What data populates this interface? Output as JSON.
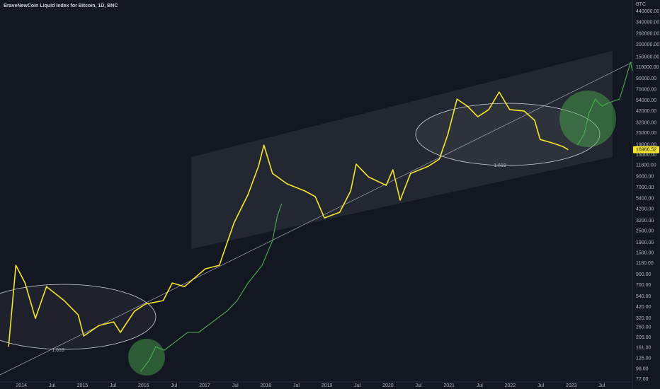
{
  "chart_data": {
    "type": "line",
    "title": "BraveNewCoin Liquid Index for Bitcoin, 1D, BNC",
    "y_axis_label": "BTC",
    "log_scale": true,
    "grid": false,
    "annotations": [
      "1.618",
      "1.618"
    ],
    "xlim": [
      2013.65,
      2024.0
    ],
    "xticks": [
      {
        "value": 2014,
        "label": "2014"
      },
      {
        "value": 2014.5,
        "label": "Jul"
      },
      {
        "value": 2015,
        "label": "2015"
      },
      {
        "value": 2015.5,
        "label": "Jul"
      },
      {
        "value": 2016,
        "label": "2016"
      },
      {
        "value": 2016.5,
        "label": "Jul"
      },
      {
        "value": 2017,
        "label": "2017"
      },
      {
        "value": 2017.5,
        "label": "Jul"
      },
      {
        "value": 2018,
        "label": "2018"
      },
      {
        "value": 2018.5,
        "label": "Jul"
      },
      {
        "value": 2019,
        "label": "2019"
      },
      {
        "value": 2019.5,
        "label": "Jul"
      },
      {
        "value": 2020,
        "label": "2020"
      },
      {
        "value": 2020.5,
        "label": "Jul"
      },
      {
        "value": 2021,
        "label": "2021"
      },
      {
        "value": 2021.5,
        "label": "Jul"
      },
      {
        "value": 2022,
        "label": "2022"
      },
      {
        "value": 2022.5,
        "label": "Jul"
      },
      {
        "value": 2023,
        "label": "2023"
      },
      {
        "value": 2023.5,
        "label": "Jul"
      }
    ],
    "ylim": [
      74.5,
      574000
    ],
    "yticks": [
      {
        "value": 440000,
        "label": "440000.00"
      },
      {
        "value": 340000,
        "label": "340000.00"
      },
      {
        "value": 260000,
        "label": "260000.00"
      },
      {
        "value": 200000,
        "label": "200000.00"
      },
      {
        "value": 150000,
        "label": "150000.00"
      },
      {
        "value": 118000,
        "label": "118000.00"
      },
      {
        "value": 90000,
        "label": "90000.00"
      },
      {
        "value": 70000,
        "label": "70000.00"
      },
      {
        "value": 54000,
        "label": "54000.00"
      },
      {
        "value": 42000,
        "label": "42000.00"
      },
      {
        "value": 32000,
        "label": "32000.00"
      },
      {
        "value": 25000,
        "label": "25000.00"
      },
      {
        "value": 19000,
        "label": "19000.00"
      },
      {
        "value": 15000,
        "label": "15000.00"
      },
      {
        "value": 11800,
        "label": "11800.00"
      },
      {
        "value": 9000,
        "label": "9000.00"
      },
      {
        "value": 7000,
        "label": "7000.00"
      },
      {
        "value": 5400,
        "label": "5400.00"
      },
      {
        "value": 4200,
        "label": "4200.00"
      },
      {
        "value": 3200,
        "label": "3200.00"
      },
      {
        "value": 2500,
        "label": "2500.00"
      },
      {
        "value": 1900,
        "label": "1900.00"
      },
      {
        "value": 1500,
        "label": "1500.00"
      },
      {
        "value": 1180,
        "label": "1180.00"
      },
      {
        "value": 900,
        "label": "900.00"
      },
      {
        "value": 700,
        "label": "700.00"
      },
      {
        "value": 540,
        "label": "540.00"
      },
      {
        "value": 420,
        "label": "420.00"
      },
      {
        "value": 320,
        "label": "320.00"
      },
      {
        "value": 260,
        "label": "260.00"
      },
      {
        "value": 205,
        "label": "205.00"
      },
      {
        "value": 161,
        "label": "161.00"
      },
      {
        "value": 126,
        "label": "126.00"
      },
      {
        "value": 98,
        "label": "98.00"
      },
      {
        "value": 77,
        "label": "77.00"
      }
    ],
    "series": [
      {
        "color": "#f5e42b",
        "x": [
          2013.79,
          2013.91,
          2014.06,
          2014.23,
          2014.41,
          2014.7,
          2014.93,
          2015.02,
          2015.27,
          2015.51,
          2015.62,
          2015.85,
          2016.03,
          2016.32,
          2016.47,
          2016.67,
          2017.01,
          2017.24,
          2017.48,
          2017.71,
          2017.88,
          2017.97,
          2018.11,
          2018.35,
          2018.64,
          2018.81,
          2018.96,
          2019.21,
          2019.39,
          2019.48,
          2019.68,
          2019.97,
          2020.08,
          2020.2,
          2020.37,
          2020.66,
          2020.84,
          2020.98,
          2021.13,
          2021.3,
          2021.47,
          2021.65,
          2021.82,
          2021.99,
          2022.23,
          2022.4,
          2022.49,
          2022.69,
          2022.86,
          2022.95
        ],
        "values": [
          165,
          1120,
          738,
          321,
          679,
          488,
          349,
          212,
          272,
          296,
          231,
          379,
          449,
          488,
          738,
          679,
          1030,
          1120,
          3040,
          5920,
          11500,
          18900,
          9720,
          7590,
          6430,
          5620,
          3410,
          3900,
          6430,
          12080,
          8950,
          7350,
          10600,
          5180,
          9720,
          11500,
          13600,
          24300,
          55800,
          47300,
          36800,
          43600,
          65900,
          43600,
          42100,
          33900,
          21600,
          19900,
          18300,
          16966.52
        ]
      },
      {
        "color": "#4caf50",
        "x": [
          2015.95,
          2016.09,
          2016.2,
          2016.34,
          2016.49,
          2016.72,
          2016.9,
          2017.13,
          2017.36,
          2017.53,
          2017.71,
          2017.94,
          2018.11,
          2018.19,
          2018.26
        ],
        "values": [
          92,
          119,
          165,
          152,
          179,
          231,
          231,
          296,
          379,
          488,
          738,
          1120,
          2000,
          3590,
          4760
        ]
      },
      {
        "color": "#4caf50",
        "x": [
          2023.1,
          2023.21,
          2023.29,
          2023.39,
          2023.5,
          2023.62,
          2023.79,
          2023.88,
          2023.97,
          2024.0
        ],
        "values": [
          18900,
          24300,
          40100,
          55800,
          47300,
          51400,
          55800,
          84700,
          132700,
          108600
        ]
      }
    ]
  }
}
